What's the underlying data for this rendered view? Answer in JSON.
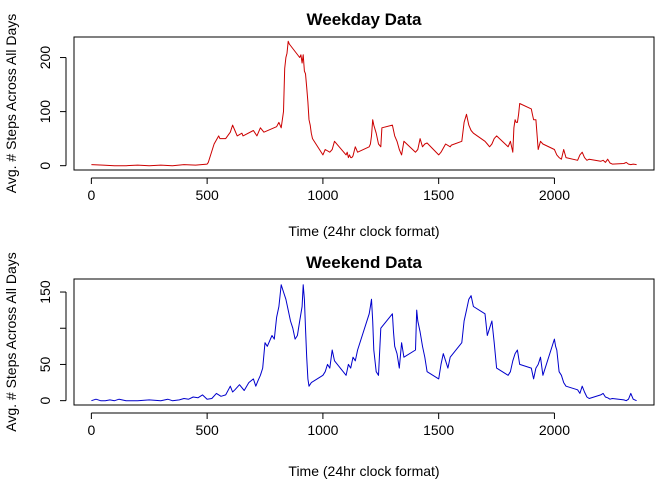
{
  "chart_data": [
    {
      "type": "line",
      "title": "Weekday Data",
      "xlabel": "Time (24hr clock format)",
      "ylabel": "Avg. # Steps Across All Days",
      "xlim": [
        -75,
        2430
      ],
      "ylim": [
        -8,
        238
      ],
      "xticks": [
        0,
        500,
        1000,
        1500,
        2000
      ],
      "yticks": [
        0,
        100,
        200
      ],
      "grid": false,
      "color": "#cc0000",
      "series": [
        {
          "x": [
            0,
            50,
            100,
            150,
            200,
            250,
            300,
            350,
            400,
            450,
            500,
            505,
            530,
            550,
            555,
            580,
            600,
            610,
            620,
            630,
            650,
            655,
            700,
            715,
            730,
            745,
            800,
            810,
            820,
            830,
            835,
            840,
            845,
            850,
            855,
            900,
            905,
            910,
            915,
            920,
            925,
            930,
            935,
            940,
            945,
            950,
            955,
            1000,
            1010,
            1030,
            1040,
            1050,
            1100,
            1105,
            1110,
            1115,
            1120,
            1125,
            1130,
            1140,
            1150,
            1200,
            1205,
            1210,
            1215,
            1220,
            1230,
            1240,
            1250,
            1255,
            1300,
            1310,
            1320,
            1330,
            1340,
            1350,
            1400,
            1410,
            1420,
            1430,
            1440,
            1450,
            1500,
            1510,
            1530,
            1550,
            1555,
            1600,
            1610,
            1620,
            1630,
            1640,
            1650,
            1700,
            1710,
            1720,
            1730,
            1740,
            1750,
            1800,
            1805,
            1810,
            1820,
            1825,
            1830,
            1835,
            1840,
            1845,
            1850,
            1900,
            1905,
            1910,
            1920,
            1930,
            1940,
            1950,
            2000,
            2005,
            2010,
            2020,
            2030,
            2040,
            2050,
            2100,
            2110,
            2120,
            2130,
            2140,
            2150,
            2200,
            2210,
            2220,
            2230,
            2240,
            2250,
            2300,
            2310,
            2320,
            2330,
            2340,
            2355
          ],
          "values": [
            2,
            1,
            0,
            0,
            1,
            0,
            1,
            0,
            2,
            1,
            3,
            6,
            40,
            55,
            50,
            50,
            62,
            75,
            65,
            55,
            60,
            55,
            65,
            55,
            70,
            62,
            72,
            80,
            70,
            100,
            180,
            200,
            208,
            230,
            225,
            200,
            205,
            190,
            205,
            175,
            170,
            145,
            118,
            85,
            75,
            60,
            50,
            20,
            30,
            25,
            30,
            45,
            20,
            25,
            15,
            20,
            15,
            15,
            18,
            35,
            25,
            35,
            40,
            55,
            85,
            75,
            60,
            40,
            35,
            70,
            75,
            55,
            45,
            30,
            20,
            45,
            25,
            30,
            50,
            35,
            40,
            42,
            20,
            25,
            40,
            35,
            38,
            45,
            80,
            95,
            75,
            65,
            60,
            45,
            40,
            35,
            40,
            50,
            55,
            35,
            40,
            45,
            25,
            70,
            85,
            80,
            80,
            95,
            115,
            105,
            95,
            85,
            85,
            30,
            45,
            40,
            30,
            25,
            20,
            15,
            12,
            30,
            15,
            10,
            20,
            25,
            15,
            10,
            12,
            8,
            10,
            6,
            12,
            5,
            3,
            4,
            6,
            3,
            2,
            3,
            2
          ]
        }
      ]
    },
    {
      "type": "line",
      "title": "Weekend Data",
      "xlabel": "Time (24hr clock format)",
      "ylabel": "Avg. # Steps Across All Days",
      "xlim": [
        -75,
        2430
      ],
      "ylim": [
        -6,
        168
      ],
      "xticks": [
        0,
        500,
        1000,
        1500,
        2000
      ],
      "yticks": [
        0,
        50,
        100,
        150
      ],
      "ytick_labels": [
        "0",
        "50",
        "",
        "150"
      ],
      "grid": false,
      "color": "#0000cc",
      "series": [
        {
          "x": [
            0,
            20,
            40,
            60,
            80,
            100,
            120,
            150,
            200,
            250,
            300,
            330,
            350,
            380,
            400,
            420,
            440,
            460,
            480,
            500,
            520,
            540,
            560,
            580,
            600,
            610,
            620,
            640,
            660,
            680,
            700,
            710,
            720,
            730,
            740,
            750,
            760,
            780,
            790,
            800,
            810,
            820,
            830,
            840,
            850,
            860,
            870,
            880,
            890,
            900,
            910,
            915,
            920,
            925,
            930,
            935,
            940,
            950,
            1000,
            1010,
            1020,
            1030,
            1040,
            1050,
            1100,
            1110,
            1120,
            1130,
            1140,
            1150,
            1200,
            1205,
            1210,
            1215,
            1220,
            1230,
            1240,
            1250,
            1300,
            1305,
            1310,
            1320,
            1330,
            1340,
            1350,
            1400,
            1405,
            1410,
            1420,
            1430,
            1440,
            1450,
            1500,
            1510,
            1520,
            1530,
            1540,
            1550,
            1600,
            1610,
            1620,
            1630,
            1640,
            1650,
            1700,
            1710,
            1720,
            1730,
            1740,
            1750,
            1800,
            1810,
            1820,
            1830,
            1840,
            1850,
            1900,
            1910,
            1920,
            1930,
            1940,
            1950,
            2000,
            2005,
            2010,
            2020,
            2030,
            2040,
            2050,
            2100,
            2110,
            2120,
            2130,
            2140,
            2150,
            2200,
            2210,
            2220,
            2230,
            2240,
            2250,
            2300,
            2310,
            2320,
            2330,
            2340,
            2355
          ],
          "values": [
            0,
            2,
            0,
            0,
            1,
            0,
            2,
            0,
            0,
            1,
            0,
            2,
            0,
            1,
            3,
            2,
            5,
            4,
            8,
            2,
            3,
            10,
            6,
            8,
            20,
            12,
            15,
            22,
            14,
            25,
            30,
            20,
            28,
            35,
            45,
            80,
            75,
            90,
            85,
            115,
            130,
            160,
            150,
            140,
            125,
            110,
            100,
            85,
            90,
            110,
            130,
            160,
            140,
            100,
            60,
            30,
            20,
            25,
            35,
            40,
            50,
            45,
            70,
            55,
            35,
            50,
            45,
            60,
            55,
            70,
            120,
            130,
            140,
            110,
            70,
            40,
            35,
            100,
            120,
            95,
            75,
            65,
            45,
            80,
            60,
            70,
            125,
            110,
            95,
            75,
            60,
            40,
            30,
            50,
            65,
            55,
            45,
            60,
            80,
            110,
            125,
            140,
            145,
            130,
            120,
            90,
            100,
            110,
            80,
            45,
            35,
            40,
            55,
            65,
            70,
            50,
            45,
            30,
            45,
            50,
            60,
            35,
            85,
            75,
            70,
            40,
            35,
            25,
            20,
            15,
            10,
            20,
            12,
            5,
            3,
            8,
            10,
            5,
            4,
            2,
            3,
            1,
            0,
            2,
            10,
            2,
            0
          ]
        }
      ]
    }
  ]
}
